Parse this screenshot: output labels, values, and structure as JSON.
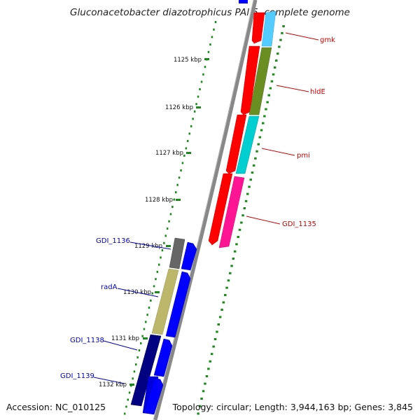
{
  "title": "Gluconacetobacter diazotrophicus PAl 5, complete genome",
  "footer": {
    "accession": "Accession: NC_010125",
    "summary": "Topology: circular; Length: 3,944,163 bp; Genes: 3,845"
  },
  "ticks": [
    "1125 kbp",
    "1126 kbp",
    "1127 kbp",
    "1128 kbp",
    "1129 kbp",
    "1130 kbp",
    "1131 kbp",
    "1132 kbp"
  ],
  "labels": {
    "gmk": "gmk",
    "hldE": "hldE",
    "pmi": "pmi",
    "GDI_1135": "GDI_1135",
    "GDI_1136": "GDI_1136",
    "radA": "radA",
    "GDI_1138": "GDI_1138",
    "GDI_1139": "GDI_1139"
  },
  "colors": {
    "cds_forward": "#0000ff",
    "cds_reverse": "#ff0000",
    "backbone": "#888888",
    "gc_marks": "#1a8a1a",
    "gmk": "#55ccff",
    "hldE": "#6b8e23",
    "pmi": "#00ced1",
    "GDI_1135": "#ff1493",
    "GDI_1136": "#666666",
    "radA": "#bdb76b",
    "GDI_1138": "#000080",
    "GDI_1139": "#0000dd"
  }
}
